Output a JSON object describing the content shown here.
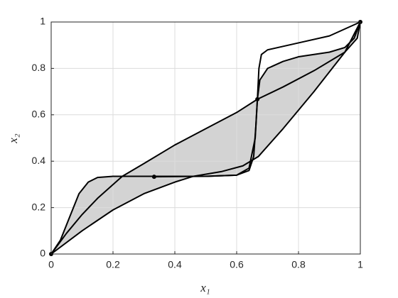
{
  "chart_data": {
    "type": "line",
    "xlabel": "x₁",
    "ylabel": "x₂",
    "xlim": [
      0,
      1
    ],
    "ylim": [
      0,
      1
    ],
    "xticks": [
      0,
      0.2,
      0.4,
      0.6,
      0.8,
      1
    ],
    "yticks": [
      0,
      0.2,
      0.4,
      0.6,
      0.8,
      1
    ],
    "grid": true,
    "fill_color": "#d3d3d3",
    "series": [
      {
        "color": "#000000",
        "x": [
          0,
          0.03,
          0.06,
          0.09,
          0.12,
          0.15,
          0.2,
          0.3,
          0.4,
          0.5,
          0.6,
          0.64,
          0.66,
          0.667,
          0.675,
          0.7,
          0.75,
          0.8,
          0.9,
          0.95,
          0.98,
          1
        ],
        "values": [
          0,
          0.06,
          0.16,
          0.26,
          0.31,
          0.33,
          0.335,
          0.335,
          0.335,
          0.335,
          0.34,
          0.37,
          0.5,
          0.667,
          0.75,
          0.8,
          0.83,
          0.85,
          0.87,
          0.89,
          0.93,
          1
        ]
      },
      {
        "color": "#000000",
        "x": [
          0,
          0.05,
          0.1,
          0.15,
          0.23,
          0.3,
          0.4,
          0.5,
          0.6,
          0.667,
          0.75,
          0.85,
          0.95,
          0.99,
          1
        ],
        "values": [
          0,
          0.09,
          0.17,
          0.24,
          0.335,
          0.39,
          0.47,
          0.54,
          0.61,
          0.667,
          0.72,
          0.79,
          0.87,
          0.93,
          1
        ]
      },
      {
        "color": "#000000",
        "x": [
          0,
          0.1,
          0.2,
          0.3,
          0.4,
          0.46,
          0.55,
          0.62,
          0.67,
          0.75,
          0.85,
          0.95,
          1
        ],
        "values": [
          0,
          0.1,
          0.19,
          0.26,
          0.31,
          0.335,
          0.355,
          0.38,
          0.42,
          0.54,
          0.7,
          0.87,
          1
        ]
      },
      {
        "color": "#000000",
        "x": [
          0.333,
          0.5,
          0.6,
          0.64,
          0.655,
          0.662,
          0.667,
          0.672,
          0.68,
          0.7,
          0.8,
          0.9,
          1
        ],
        "values": [
          0.333,
          0.335,
          0.34,
          0.36,
          0.42,
          0.55,
          0.667,
          0.8,
          0.86,
          0.88,
          0.91,
          0.94,
          1
        ]
      }
    ],
    "points": {
      "color": "#000000",
      "x": [
        0,
        0.333,
        0.667,
        1
      ],
      "values": [
        0,
        0.333,
        0.667,
        1
      ]
    }
  }
}
